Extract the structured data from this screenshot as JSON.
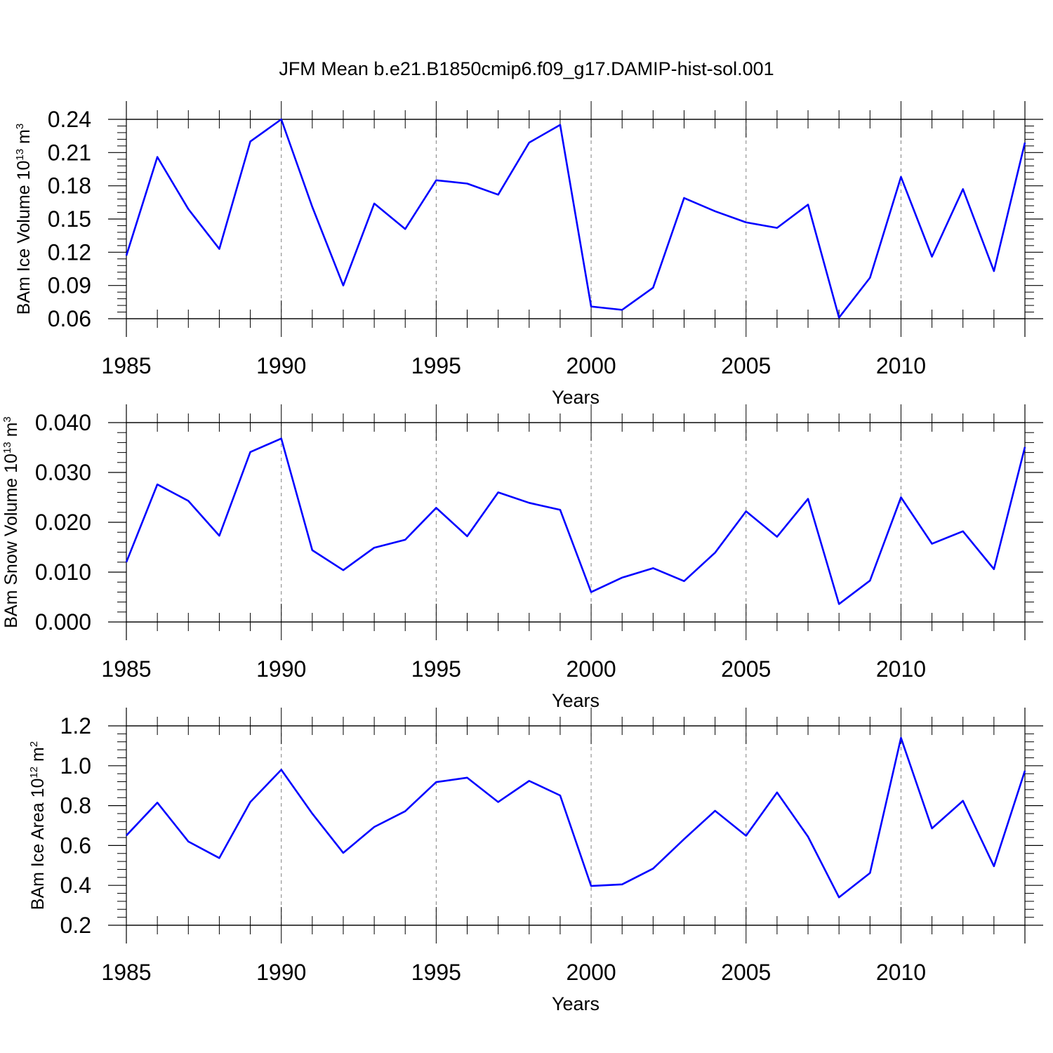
{
  "title": "JFM Mean b.e21.B1850cmip6.f09_g17.DAMIP-hist-sol.001",
  "colors": {
    "series": "#0000ff",
    "axes": "#000000",
    "grid": "#808080"
  },
  "chart_data": [
    {
      "type": "line",
      "ylabel": {
        "base": "BAm Ice Volume 10",
        "exp": "13",
        "unit": " m",
        "unit_exp": "3"
      },
      "xlabel": "Years",
      "xlim": [
        1985,
        2014
      ],
      "ylim": [
        0.06,
        0.24
      ],
      "x_ticks": [
        "1985",
        "1990",
        "1995",
        "2000",
        "2005",
        "2010"
      ],
      "y_ticks": [
        "0.06",
        "0.09",
        "0.12",
        "0.15",
        "0.18",
        "0.21",
        "0.24"
      ],
      "grid": "vertical dashed at major x ticks",
      "x": [
        1985,
        1986,
        1987,
        1988,
        1989,
        1990,
        1991,
        1992,
        1993,
        1994,
        1995,
        1996,
        1997,
        1998,
        1999,
        2000,
        2001,
        2002,
        2003,
        2004,
        2005,
        2006,
        2007,
        2008,
        2009,
        2010,
        2011,
        2012,
        2013,
        2014
      ],
      "series": [
        {
          "values": [
            0.117,
            0.206,
            0.159,
            0.123,
            0.22,
            0.24,
            0.161,
            0.09,
            0.164,
            0.141,
            0.185,
            0.182,
            0.172,
            0.219,
            0.235,
            0.071,
            0.068,
            0.088,
            0.169,
            0.157,
            0.147,
            0.142,
            0.163,
            0.061,
            0.097,
            0.188,
            0.116,
            0.177,
            0.103,
            0.219
          ]
        }
      ]
    },
    {
      "type": "line",
      "ylabel": {
        "base": "BAm Snow Volume 10",
        "exp": "13",
        "unit": " m",
        "unit_exp": "3"
      },
      "xlabel": "Years",
      "xlim": [
        1985,
        2014
      ],
      "ylim": [
        0.0,
        0.04
      ],
      "x_ticks": [
        "1985",
        "1990",
        "1995",
        "2000",
        "2005",
        "2010"
      ],
      "y_ticks": [
        "0.000",
        "0.010",
        "0.020",
        "0.030",
        "0.040"
      ],
      "grid": "vertical dashed at major x ticks",
      "x": [
        1985,
        1986,
        1987,
        1988,
        1989,
        1990,
        1991,
        1992,
        1993,
        1994,
        1995,
        1996,
        1997,
        1998,
        1999,
        2000,
        2001,
        2002,
        2003,
        2004,
        2005,
        2006,
        2007,
        2008,
        2009,
        2010,
        2011,
        2012,
        2013,
        2014
      ],
      "series": [
        {
          "values": [
            0.012,
            0.0276,
            0.0243,
            0.0173,
            0.0341,
            0.0368,
            0.0144,
            0.0104,
            0.0149,
            0.0165,
            0.0229,
            0.0172,
            0.026,
            0.0239,
            0.0225,
            0.006,
            0.0089,
            0.0108,
            0.0082,
            0.0139,
            0.0222,
            0.0171,
            0.0247,
            0.0036,
            0.0083,
            0.025,
            0.0157,
            0.0182,
            0.0106,
            0.0351
          ]
        }
      ]
    },
    {
      "type": "line",
      "ylabel": {
        "base": "BAm Ice Area 10",
        "exp": "12",
        "unit": " m",
        "unit_exp": "2"
      },
      "xlabel": "Years",
      "xlim": [
        1985,
        2014
      ],
      "ylim": [
        0.2,
        1.2
      ],
      "x_ticks": [
        "1985",
        "1990",
        "1995",
        "2000",
        "2005",
        "2010"
      ],
      "y_ticks": [
        "0.2",
        "0.4",
        "0.6",
        "0.8",
        "1.0",
        "1.2"
      ],
      "grid": "vertical dashed at major x ticks",
      "x": [
        1985,
        1986,
        1987,
        1988,
        1989,
        1990,
        1991,
        1992,
        1993,
        1994,
        1995,
        1996,
        1997,
        1998,
        1999,
        2000,
        2001,
        2002,
        2003,
        2004,
        2005,
        2006,
        2007,
        2008,
        2009,
        2010,
        2011,
        2012,
        2013,
        2014
      ],
      "series": [
        {
          "values": [
            0.65,
            0.815,
            0.62,
            0.537,
            0.818,
            0.98,
            0.76,
            0.563,
            0.693,
            0.772,
            0.918,
            0.94,
            0.818,
            0.924,
            0.851,
            0.397,
            0.405,
            0.484,
            0.632,
            0.774,
            0.649,
            0.866,
            0.644,
            0.34,
            0.462,
            1.14,
            0.686,
            0.824,
            0.496,
            0.975
          ]
        }
      ]
    }
  ]
}
